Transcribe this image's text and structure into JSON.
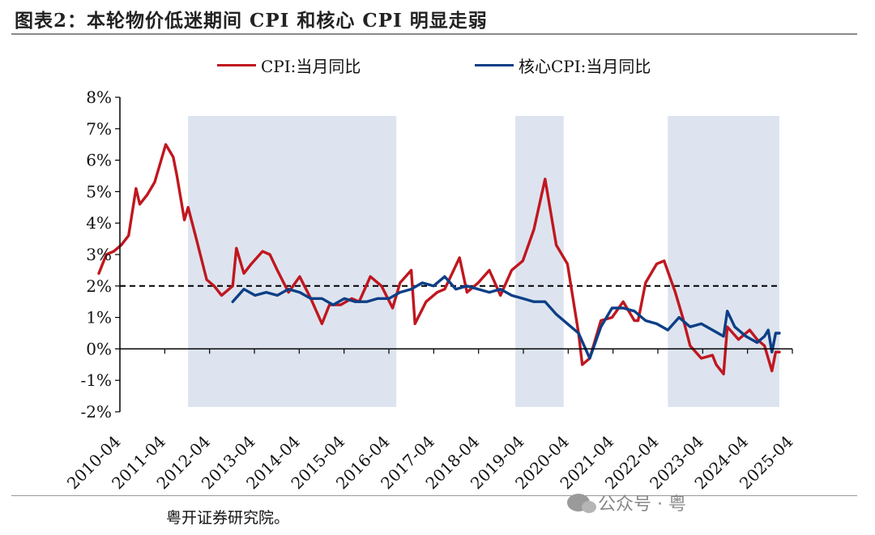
{
  "title": "图表2：本轮物价低迷期间 CPI 和核心 CPI 明显走弱",
  "source": "粤开证券研究院。",
  "watermark": "公众号 · 粤",
  "colors": {
    "cpi": "#c0171f",
    "core": "#0d3f86",
    "shade": "#dde4ef",
    "reference": "#000000"
  },
  "icons": {
    "watermark": "wechat-icon"
  },
  "chart_data": {
    "type": "line",
    "ylim": [
      -2.0,
      8.0
    ],
    "y_ticks": [
      -2,
      -1,
      0,
      1,
      2,
      3,
      4,
      5,
      6,
      7,
      8
    ],
    "y_tick_labels": [
      "-2%",
      "-1%",
      "0%",
      "1%",
      "2%",
      "3%",
      "4%",
      "5%",
      "6%",
      "7%",
      "8%"
    ],
    "x_range": [
      "2010-01",
      "2025-04"
    ],
    "x_tick_labels": [
      "2010-04",
      "2011-04",
      "2012-04",
      "2013-04",
      "2014-04",
      "2015-04",
      "2016-04",
      "2017-04",
      "2018-04",
      "2019-04",
      "2020-04",
      "2021-04",
      "2022-04",
      "2023-04",
      "2024-04",
      "2025-04"
    ],
    "reference_line": {
      "y": 2.0,
      "style": "dashed"
    },
    "shaded_periods": [
      [
        "2012-01",
        "2016-09"
      ],
      [
        "2019-05",
        "2020-06"
      ],
      [
        "2022-10",
        "2025-04"
      ]
    ],
    "legend_position": "top",
    "series": [
      {
        "name": "CPI:当月同比",
        "points": [
          [
            "2010-01",
            2.4
          ],
          [
            "2010-03",
            3.0
          ],
          [
            "2010-05",
            3.1
          ],
          [
            "2010-07",
            3.3
          ],
          [
            "2010-09",
            3.6
          ],
          [
            "2010-11",
            5.1
          ],
          [
            "2010-12",
            4.6
          ],
          [
            "2011-02",
            4.9
          ],
          [
            "2011-04",
            5.3
          ],
          [
            "2011-07",
            6.5
          ],
          [
            "2011-09",
            6.1
          ],
          [
            "2011-10",
            5.5
          ],
          [
            "2011-12",
            4.1
          ],
          [
            "2012-01",
            4.5
          ],
          [
            "2012-03",
            3.6
          ],
          [
            "2012-06",
            2.2
          ],
          [
            "2012-08",
            2.0
          ],
          [
            "2012-10",
            1.7
          ],
          [
            "2013-01",
            2.0
          ],
          [
            "2013-02",
            3.2
          ],
          [
            "2013-04",
            2.4
          ],
          [
            "2013-06",
            2.7
          ],
          [
            "2013-09",
            3.1
          ],
          [
            "2013-11",
            3.0
          ],
          [
            "2014-01",
            2.5
          ],
          [
            "2014-04",
            1.8
          ],
          [
            "2014-07",
            2.3
          ],
          [
            "2014-10",
            1.6
          ],
          [
            "2015-01",
            0.8
          ],
          [
            "2015-03",
            1.4
          ],
          [
            "2015-06",
            1.4
          ],
          [
            "2015-09",
            1.6
          ],
          [
            "2015-11",
            1.5
          ],
          [
            "2016-02",
            2.3
          ],
          [
            "2016-05",
            2.0
          ],
          [
            "2016-08",
            1.3
          ],
          [
            "2016-10",
            2.1
          ],
          [
            "2017-01",
            2.5
          ],
          [
            "2017-02",
            0.8
          ],
          [
            "2017-05",
            1.5
          ],
          [
            "2017-08",
            1.8
          ],
          [
            "2017-10",
            1.9
          ],
          [
            "2018-02",
            2.9
          ],
          [
            "2018-04",
            1.8
          ],
          [
            "2018-07",
            2.1
          ],
          [
            "2018-10",
            2.5
          ],
          [
            "2019-01",
            1.7
          ],
          [
            "2019-04",
            2.5
          ],
          [
            "2019-07",
            2.8
          ],
          [
            "2019-10",
            3.8
          ],
          [
            "2020-01",
            5.4
          ],
          [
            "2020-04",
            3.3
          ],
          [
            "2020-07",
            2.7
          ],
          [
            "2020-10",
            0.5
          ],
          [
            "2020-11",
            -0.5
          ],
          [
            "2021-01",
            -0.3
          ],
          [
            "2021-04",
            0.9
          ],
          [
            "2021-07",
            1.0
          ],
          [
            "2021-10",
            1.5
          ],
          [
            "2022-01",
            0.9
          ],
          [
            "2022-02",
            0.9
          ],
          [
            "2022-04",
            2.1
          ],
          [
            "2022-07",
            2.7
          ],
          [
            "2022-09",
            2.8
          ],
          [
            "2022-12",
            1.8
          ],
          [
            "2023-02",
            1.0
          ],
          [
            "2023-04",
            0.1
          ],
          [
            "2023-07",
            -0.3
          ],
          [
            "2023-10",
            -0.2
          ],
          [
            "2023-11",
            -0.5
          ],
          [
            "2024-01",
            -0.8
          ],
          [
            "2024-02",
            0.7
          ],
          [
            "2024-05",
            0.3
          ],
          [
            "2024-08",
            0.6
          ],
          [
            "2024-10",
            0.3
          ],
          [
            "2024-12",
            0.1
          ],
          [
            "2025-02",
            -0.7
          ],
          [
            "2025-03",
            -0.1
          ],
          [
            "2025-04",
            -0.1
          ]
        ]
      },
      {
        "name": "核心CPI:当月同比",
        "points": [
          [
            "2013-01",
            1.5
          ],
          [
            "2013-04",
            1.9
          ],
          [
            "2013-07",
            1.7
          ],
          [
            "2013-10",
            1.8
          ],
          [
            "2014-01",
            1.7
          ],
          [
            "2014-04",
            1.9
          ],
          [
            "2014-07",
            1.8
          ],
          [
            "2014-10",
            1.6
          ],
          [
            "2015-01",
            1.6
          ],
          [
            "2015-04",
            1.4
          ],
          [
            "2015-07",
            1.6
          ],
          [
            "2015-10",
            1.5
          ],
          [
            "2016-01",
            1.5
          ],
          [
            "2016-04",
            1.6
          ],
          [
            "2016-07",
            1.6
          ],
          [
            "2016-10",
            1.8
          ],
          [
            "2017-01",
            1.9
          ],
          [
            "2017-04",
            2.1
          ],
          [
            "2017-07",
            2.0
          ],
          [
            "2017-10",
            2.3
          ],
          [
            "2018-01",
            1.9
          ],
          [
            "2018-04",
            2.0
          ],
          [
            "2018-07",
            1.9
          ],
          [
            "2018-10",
            1.8
          ],
          [
            "2019-01",
            1.9
          ],
          [
            "2019-04",
            1.7
          ],
          [
            "2019-07",
            1.6
          ],
          [
            "2019-10",
            1.5
          ],
          [
            "2020-01",
            1.5
          ],
          [
            "2020-04",
            1.1
          ],
          [
            "2020-07",
            0.8
          ],
          [
            "2020-10",
            0.5
          ],
          [
            "2021-01",
            -0.3
          ],
          [
            "2021-04",
            0.7
          ],
          [
            "2021-07",
            1.3
          ],
          [
            "2021-10",
            1.3
          ],
          [
            "2022-01",
            1.2
          ],
          [
            "2022-04",
            0.9
          ],
          [
            "2022-07",
            0.8
          ],
          [
            "2022-10",
            0.6
          ],
          [
            "2023-01",
            1.0
          ],
          [
            "2023-04",
            0.7
          ],
          [
            "2023-07",
            0.8
          ],
          [
            "2023-10",
            0.6
          ],
          [
            "2024-01",
            0.4
          ],
          [
            "2024-02",
            1.2
          ],
          [
            "2024-04",
            0.7
          ],
          [
            "2024-07",
            0.4
          ],
          [
            "2024-10",
            0.2
          ],
          [
            "2024-12",
            0.4
          ],
          [
            "2025-01",
            0.6
          ],
          [
            "2025-02",
            -0.1
          ],
          [
            "2025-03",
            0.5
          ],
          [
            "2025-04",
            0.5
          ]
        ]
      }
    ]
  }
}
